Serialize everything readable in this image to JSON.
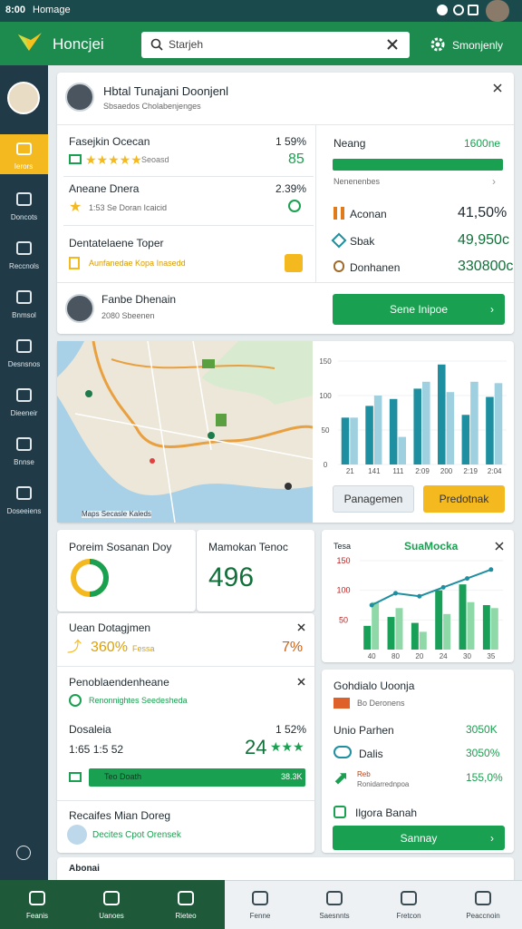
{
  "status_bar": {
    "time": "8:00",
    "title": "Homage"
  },
  "header": {
    "app_name": "Honcjei",
    "search_placeholder": "Starjeh",
    "settings": "Smonjenly"
  },
  "sidebar": {
    "items": [
      "Ierors",
      "Doncots",
      "Reccnols",
      "Bnmsol",
      "Desnsnos",
      "Dieeneir",
      "Bnnse",
      "Doseeiens"
    ]
  },
  "profile_card": {
    "name": "Hbtal Tunajani Doonjenl",
    "subtitle": "Sbsaedos Cholabenjenges",
    "metrics": [
      {
        "label": "Fasejkin Ocecan",
        "value": "1 59%",
        "rating_label": "Seoasd",
        "badge": "85"
      },
      {
        "label": "Aneane Dnera",
        "value": "2.39%",
        "detail": "1:53 Se Doran Icaicid"
      },
      {
        "label": "Dentatelaene Toper",
        "detail": "Aunfanedae Kopa Inasedd"
      }
    ],
    "panel": {
      "title": "Neang",
      "value": "1600ne",
      "caption": "Nenenenbes",
      "rows": [
        {
          "label": "Aconan",
          "value": "41,50%"
        },
        {
          "label": "Sbak",
          "value": "49,950c"
        },
        {
          "label": "Donhanen",
          "value": "330800c"
        }
      ]
    },
    "contact": {
      "name": "Fanbe Dhenain",
      "detail": "2080 Sbeenen"
    },
    "button": "Sene Inipoe"
  },
  "map": {
    "caption": "Maps Secasle Kaleds"
  },
  "bar_chart": {
    "categories": [
      "21",
      "141",
      "111",
      "2:09",
      "200",
      "2:19",
      "2:04"
    ],
    "series": [
      {
        "color": "#1e8fa0",
        "values": [
          68,
          85,
          95,
          110,
          145,
          72,
          98
        ]
      },
      {
        "color": "#9fd0e0",
        "values": [
          68,
          100,
          40,
          120,
          105,
          120,
          118
        ]
      }
    ],
    "ylim": [
      0,
      150
    ],
    "yticks": [
      0,
      50,
      100,
      150
    ],
    "buttons": [
      "Panagemen",
      "Predotnak"
    ]
  },
  "summary": {
    "donut_title": "Poreim Sosanan Doy",
    "metric_title": "Mamokan Tenoc",
    "metric_value": "496"
  },
  "combo_chart": {
    "title": "Tesa",
    "subtitle": "SuaMocka",
    "categories": [
      "40",
      "80",
      "20",
      "24",
      "30",
      "35"
    ],
    "bars": [
      {
        "color": "#18a058",
        "values": [
          40,
          55,
          45,
          100,
          110,
          75
        ]
      },
      {
        "color": "#8fd9a8",
        "values": [
          80,
          70,
          30,
          60,
          80,
          70
        ]
      }
    ],
    "line": {
      "color": "#1e8fa0",
      "values": [
        75,
        95,
        90,
        105,
        120,
        135
      ]
    },
    "ylim": [
      0,
      150
    ],
    "yticks": [
      50,
      100,
      150
    ]
  },
  "details": {
    "growth": {
      "title": "Uean Dotagjmen",
      "value": "360%",
      "note": "Fessa",
      "change": "7%"
    },
    "notes": {
      "title": "Penoblaendenheane",
      "detail": "Renonnightes Seedesheda"
    },
    "stats": {
      "label": "Dosaleia",
      "value": "1 52%",
      "time": "1:65 1:5 52",
      "score": "24"
    },
    "progress": {
      "label": "Teo Doath",
      "value": "38.3K"
    },
    "footer": {
      "title": "Recaifes Mian Doreg",
      "detail": "Decites Cpot Orensek"
    }
  },
  "side_card": {
    "title": "Gohdialo Uoonja",
    "subtitle": "Bo Deronens",
    "rows": [
      {
        "label": "Unio Parhen",
        "value": "3050K"
      },
      {
        "label": "Dalis",
        "value": "3050%"
      },
      {
        "label": "Reb",
        "detail": "Ronidarrednpoa",
        "value": "155,0%"
      }
    ],
    "link": "Ilgora Banah",
    "button": "Sannay"
  },
  "strip": {
    "title": "Abonai"
  },
  "bottom_nav": [
    "Feanis",
    "Uanoes",
    "Rieteo",
    "Fenne",
    "Saesnnts",
    "Fretcon",
    "Peaccnoin"
  ]
}
